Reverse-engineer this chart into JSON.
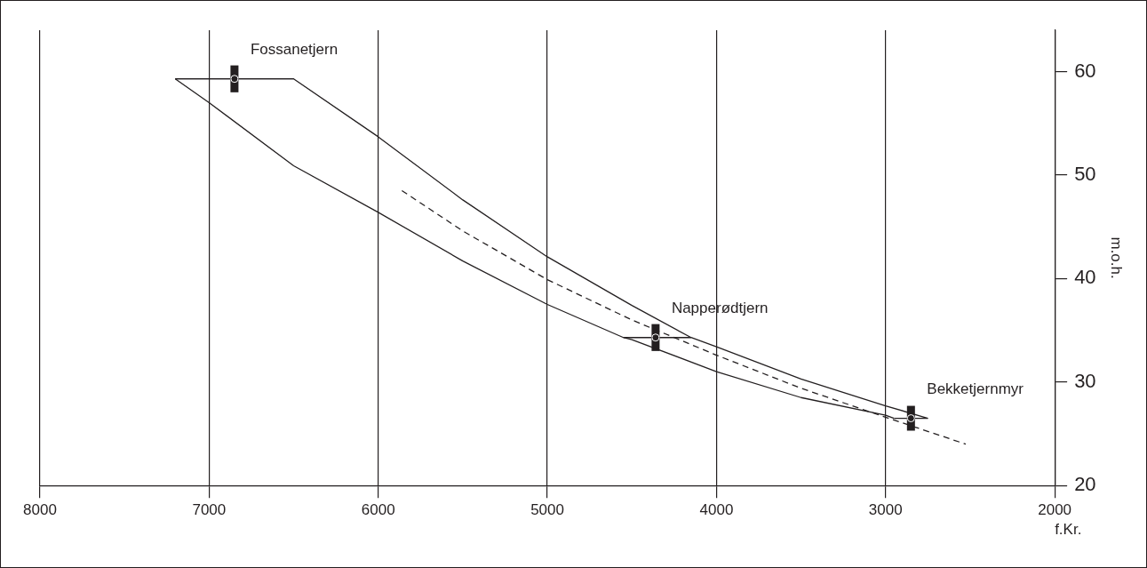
{
  "chart_data": {
    "type": "line",
    "xlabel": "f.Kr.",
    "ylabel": "m.o.h.",
    "xlim": [
      8000,
      2000
    ],
    "xticks": [
      8000,
      7000,
      6000,
      5000,
      4000,
      3000,
      2000
    ],
    "ylim": [
      20,
      64
    ],
    "yticks": [
      20,
      30,
      40,
      50,
      60
    ],
    "grid": "x",
    "legend": false,
    "series": [
      {
        "type": "scatter",
        "color": "#231f20",
        "x": [
          6850,
          4360,
          2850
        ],
        "values": [
          59.3,
          34.3,
          26.5
        ],
        "errors": [
          [
            58.0,
            60.6
          ],
          [
            33.0,
            35.6
          ],
          [
            25.3,
            27.7
          ]
        ],
        "xerrors": [
          [
            6500,
            7200
          ],
          [
            4150,
            4550
          ],
          [
            2750,
            2950
          ]
        ]
      },
      {
        "color": "#231f20",
        "x": [
          7200,
          6500,
          6000,
          5500,
          5000,
          4500,
          4150,
          4000,
          3500,
          3000,
          2750
        ],
        "values": [
          59.3,
          59.3,
          53.7,
          47.6,
          42.1,
          37.4,
          34.3,
          33.4,
          30.3,
          27.7,
          26.5
        ]
      },
      {
        "color": "#231f20",
        "x": [
          7200,
          7000,
          6500,
          6000,
          5500,
          5000,
          4550,
          4500,
          4000,
          3500,
          3000,
          2950
        ],
        "values": [
          59.3,
          57.0,
          50.9,
          46.4,
          41.7,
          37.5,
          34.3,
          34.1,
          31.0,
          28.5,
          26.8,
          26.5
        ]
      },
      {
        "color": "#231f20",
        "line_style": "dashed",
        "x": [
          5860,
          5500,
          5000,
          4500,
          4000,
          3500,
          3000,
          2526
        ],
        "values": [
          48.5,
          44.6,
          39.9,
          36.0,
          32.6,
          29.4,
          26.6,
          24.0
        ]
      }
    ],
    "annotations": [
      {
        "text": "Fossanetjern",
        "x": 6850,
        "y": 59.3
      },
      {
        "text": "Napperødtjern",
        "x": 4360,
        "y": 34.3
      },
      {
        "text": "Bekketjernmyr",
        "x": 2850,
        "y": 26.5
      }
    ]
  }
}
